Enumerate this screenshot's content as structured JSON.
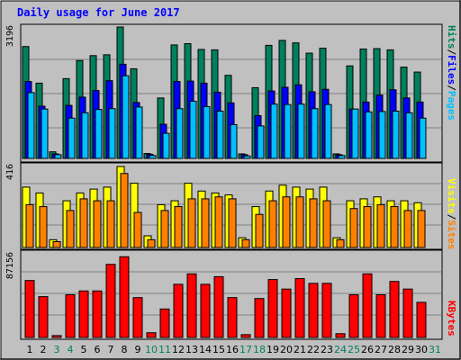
{
  "title": "Daily usage for June 2017",
  "colors": {
    "hits": "#00805c",
    "files": "#0000ff",
    "pages": "#00c0ff",
    "visits": "#ffff00",
    "sites": "#ff8000",
    "kbytes": "#ff0000",
    "weekend_day": "#00805c",
    "weekday": "#000000",
    "title": "#0000ff"
  },
  "chart_data": [
    {
      "type": "bar",
      "title": "Daily usage for June 2017",
      "max_label": "3196",
      "ylim": [
        0,
        3196
      ],
      "categories": [
        "1",
        "2",
        "3",
        "4",
        "5",
        "6",
        "7",
        "8",
        "9",
        "10",
        "11",
        "12",
        "13",
        "14",
        "15",
        "16",
        "17",
        "18",
        "19",
        "20",
        "21",
        "22",
        "23",
        "24",
        "25",
        "26",
        "27",
        "28",
        "29",
        "30",
        "31"
      ],
      "weekend": [
        "3",
        "4",
        "10",
        "11",
        "17",
        "18",
        "24",
        "25",
        "31"
      ],
      "series": [
        {
          "name": "Hits",
          "values": [
            2720,
            1830,
            160,
            1940,
            2380,
            2500,
            2520,
            3196,
            2180,
            120,
            1470,
            2760,
            2790,
            2650,
            2640,
            2020,
            110,
            1720,
            2750,
            2870,
            2810,
            2560,
            2680,
            110,
            2250,
            2660,
            2670,
            2640,
            2220,
            2100,
            0
          ]
        },
        {
          "name": "Files",
          "values": [
            1870,
            1270,
            110,
            1290,
            1490,
            1650,
            1890,
            2290,
            1360,
            100,
            830,
            1870,
            1880,
            1830,
            1610,
            1350,
            90,
            1040,
            1640,
            1730,
            1790,
            1620,
            1680,
            90,
            1200,
            1370,
            1540,
            1670,
            1470,
            1370,
            0
          ]
        },
        {
          "name": "Pages",
          "values": [
            1600,
            1200,
            90,
            980,
            1110,
            1190,
            1210,
            2010,
            1250,
            70,
            610,
            1210,
            1390,
            1260,
            1150,
            820,
            60,
            790,
            1320,
            1310,
            1320,
            1210,
            1310,
            70,
            1200,
            1130,
            1140,
            1150,
            1110,
            980,
            0
          ]
        }
      ],
      "right_label": [
        "Pages",
        "Files",
        "Hits"
      ]
    },
    {
      "type": "bar",
      "max_label": "416",
      "ylim": [
        0,
        416
      ],
      "categories": [
        "1",
        "2",
        "3",
        "4",
        "5",
        "6",
        "7",
        "8",
        "9",
        "10",
        "11",
        "12",
        "13",
        "14",
        "15",
        "16",
        "17",
        "18",
        "19",
        "20",
        "21",
        "22",
        "23",
        "24",
        "25",
        "26",
        "27",
        "28",
        "29",
        "30",
        "31"
      ],
      "series": [
        {
          "name": "Visits",
          "values": [
            310,
            280,
            40,
            240,
            280,
            300,
            310,
            416,
            330,
            60,
            220,
            240,
            330,
            290,
            280,
            270,
            50,
            210,
            290,
            320,
            310,
            300,
            310,
            50,
            240,
            250,
            260,
            240,
            240,
            230,
            0
          ]
        },
        {
          "name": "Sites",
          "values": [
            220,
            210,
            30,
            190,
            250,
            240,
            240,
            380,
            180,
            40,
            190,
            210,
            250,
            250,
            260,
            250,
            40,
            170,
            240,
            260,
            260,
            250,
            240,
            40,
            200,
            210,
            220,
            210,
            190,
            190,
            0
          ]
        }
      ],
      "right_label": [
        "Sites",
        "Visits"
      ]
    },
    {
      "type": "bar",
      "max_label": "87156",
      "ylim": [
        0,
        87156
      ],
      "categories": [
        "1",
        "2",
        "3",
        "4",
        "5",
        "6",
        "7",
        "8",
        "9",
        "10",
        "11",
        "12",
        "13",
        "14",
        "15",
        "16",
        "17",
        "18",
        "19",
        "20",
        "21",
        "22",
        "23",
        "24",
        "25",
        "26",
        "27",
        "28",
        "29",
        "30",
        "31"
      ],
      "series": [
        {
          "name": "KBytes",
          "values": [
            60000,
            43000,
            2000,
            45000,
            49000,
            49000,
            77000,
            85000,
            42000,
            5000,
            30000,
            56000,
            67000,
            56000,
            64000,
            42000,
            3000,
            41000,
            61000,
            51000,
            62000,
            57000,
            57000,
            4000,
            45000,
            67000,
            45000,
            59000,
            51000,
            37000,
            0
          ]
        }
      ],
      "right_label": [
        "KBytes"
      ]
    }
  ]
}
